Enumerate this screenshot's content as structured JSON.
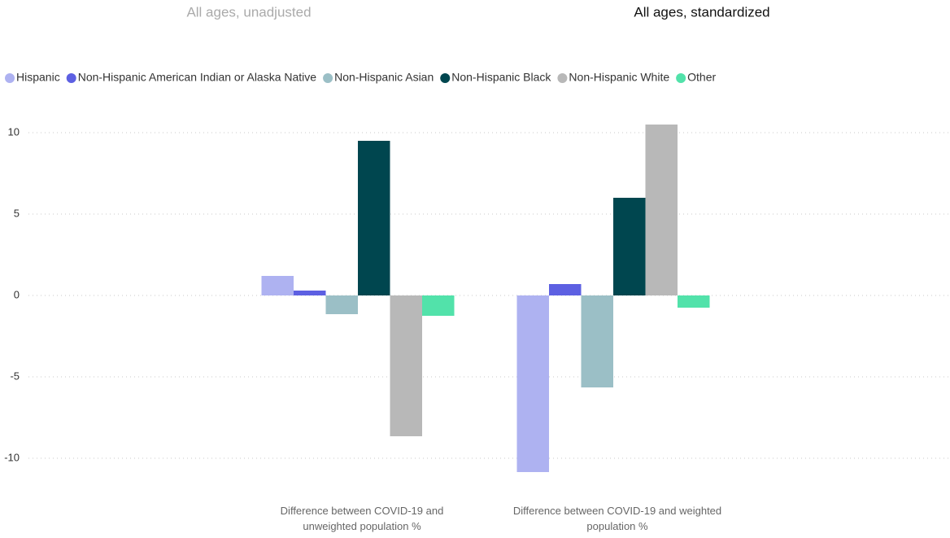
{
  "chart_data": {
    "type": "bar",
    "tabs": [
      "All ages, unadjusted",
      "All ages, standardized"
    ],
    "active_tab": 1,
    "categories": [
      "Difference between COVID-19 and unweighted population %",
      "Difference between COVID-19 and weighted population %"
    ],
    "series": [
      {
        "name": "Hispanic",
        "color": "#aeb2f1",
        "values": [
          1.2,
          -10.85
        ]
      },
      {
        "name": "Non-Hispanic American Indian or Alaska Native",
        "color": "#5d60e2",
        "values": [
          0.3,
          0.7
        ]
      },
      {
        "name": "Non-Hispanic Asian",
        "color": "#9bbfc6",
        "values": [
          -1.15,
          -5.65
        ]
      },
      {
        "name": "Non-Hispanic Black",
        "color": "#00464f",
        "values": [
          9.5,
          6.0
        ]
      },
      {
        "name": "Non-Hispanic White",
        "color": "#b8b8b8",
        "values": [
          -8.65,
          10.5
        ]
      },
      {
        "name": "Other",
        "color": "#52e2aa",
        "values": [
          -1.25,
          -0.75
        ]
      }
    ],
    "ylim": [
      -11.5,
      11
    ],
    "yticks": [
      -10,
      -5,
      0,
      5,
      10
    ],
    "grid": true,
    "legend": "top"
  }
}
